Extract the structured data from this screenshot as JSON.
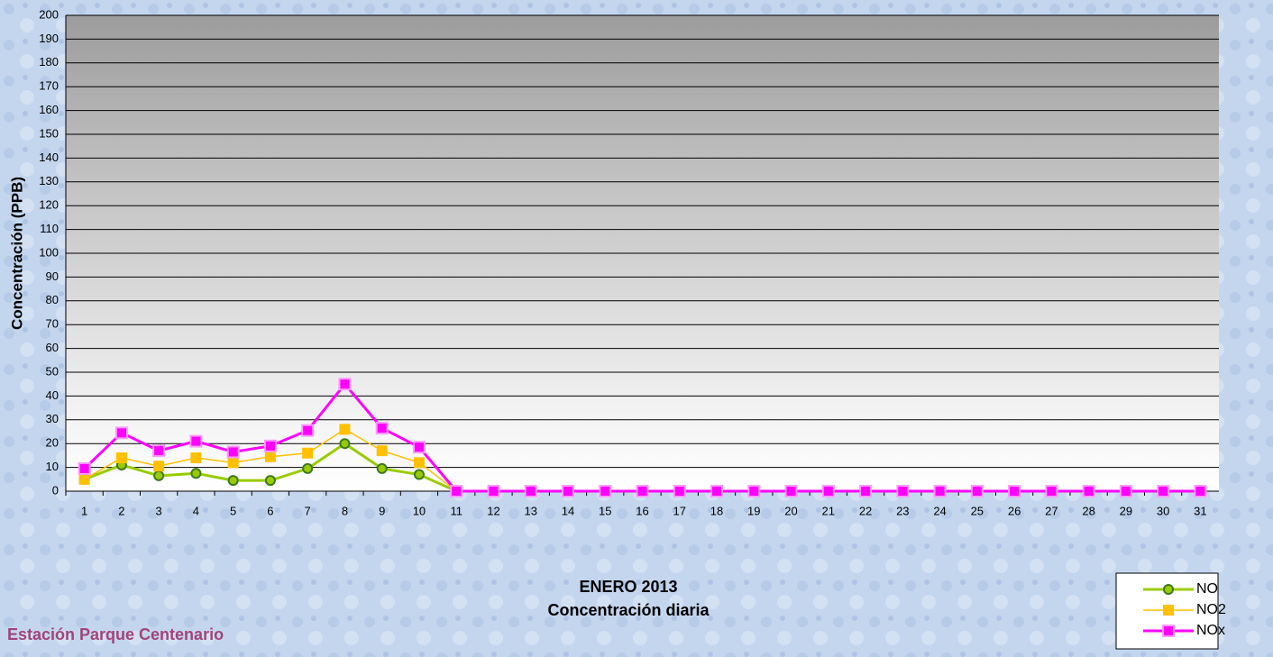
{
  "chart_data": {
    "type": "line",
    "title": "ENERO 2013",
    "subtitle": "Concentración diaria",
    "annotation": "Estación Parque Centenario",
    "y_label": "Concentración  (PPB)",
    "categories": [
      "1",
      "2",
      "3",
      "4",
      "5",
      "6",
      "7",
      "8",
      "9",
      "10",
      "11",
      "12",
      "13",
      "14",
      "15",
      "16",
      "17",
      "18",
      "19",
      "20",
      "21",
      "22",
      "23",
      "24",
      "25",
      "26",
      "27",
      "28",
      "29",
      "30",
      "31"
    ],
    "series": [
      {
        "name": "NO",
        "color": "#99cc00",
        "marker": "circle",
        "values": [
          5,
          11,
          6.5,
          7.5,
          4.5,
          4.5,
          9.5,
          20,
          9.5,
          7,
          0,
          0,
          0,
          0,
          0,
          0,
          0,
          0,
          0,
          0,
          0,
          0,
          0,
          0,
          0,
          0,
          0,
          0,
          0,
          0,
          0
        ]
      },
      {
        "name": "NO2",
        "color": "#ffc000",
        "marker": "square",
        "values": [
          5,
          14,
          10.5,
          14,
          12,
          14.5,
          16,
          26,
          17,
          12,
          0,
          0,
          0,
          0,
          0,
          0,
          0,
          0,
          0,
          0,
          0,
          0,
          0,
          0,
          0,
          0,
          0,
          0,
          0,
          0,
          0
        ]
      },
      {
        "name": "NOx",
        "color": "#ff00ff",
        "marker": "square",
        "values": [
          9.5,
          24.5,
          17,
          21,
          16.5,
          19,
          25.5,
          45,
          26.5,
          18.5,
          0,
          0,
          0,
          0,
          0,
          0,
          0,
          0,
          0,
          0,
          0,
          0,
          0,
          0,
          0,
          0,
          0,
          0,
          0,
          0,
          0
        ]
      }
    ],
    "ylim": [
      0,
      200
    ],
    "yticks": [
      0,
      10,
      20,
      30,
      40,
      50,
      60,
      70,
      80,
      90,
      100,
      110,
      120,
      130,
      140,
      150,
      160,
      170,
      180,
      190,
      200
    ],
    "grid": true,
    "legend": "bottom-right"
  }
}
